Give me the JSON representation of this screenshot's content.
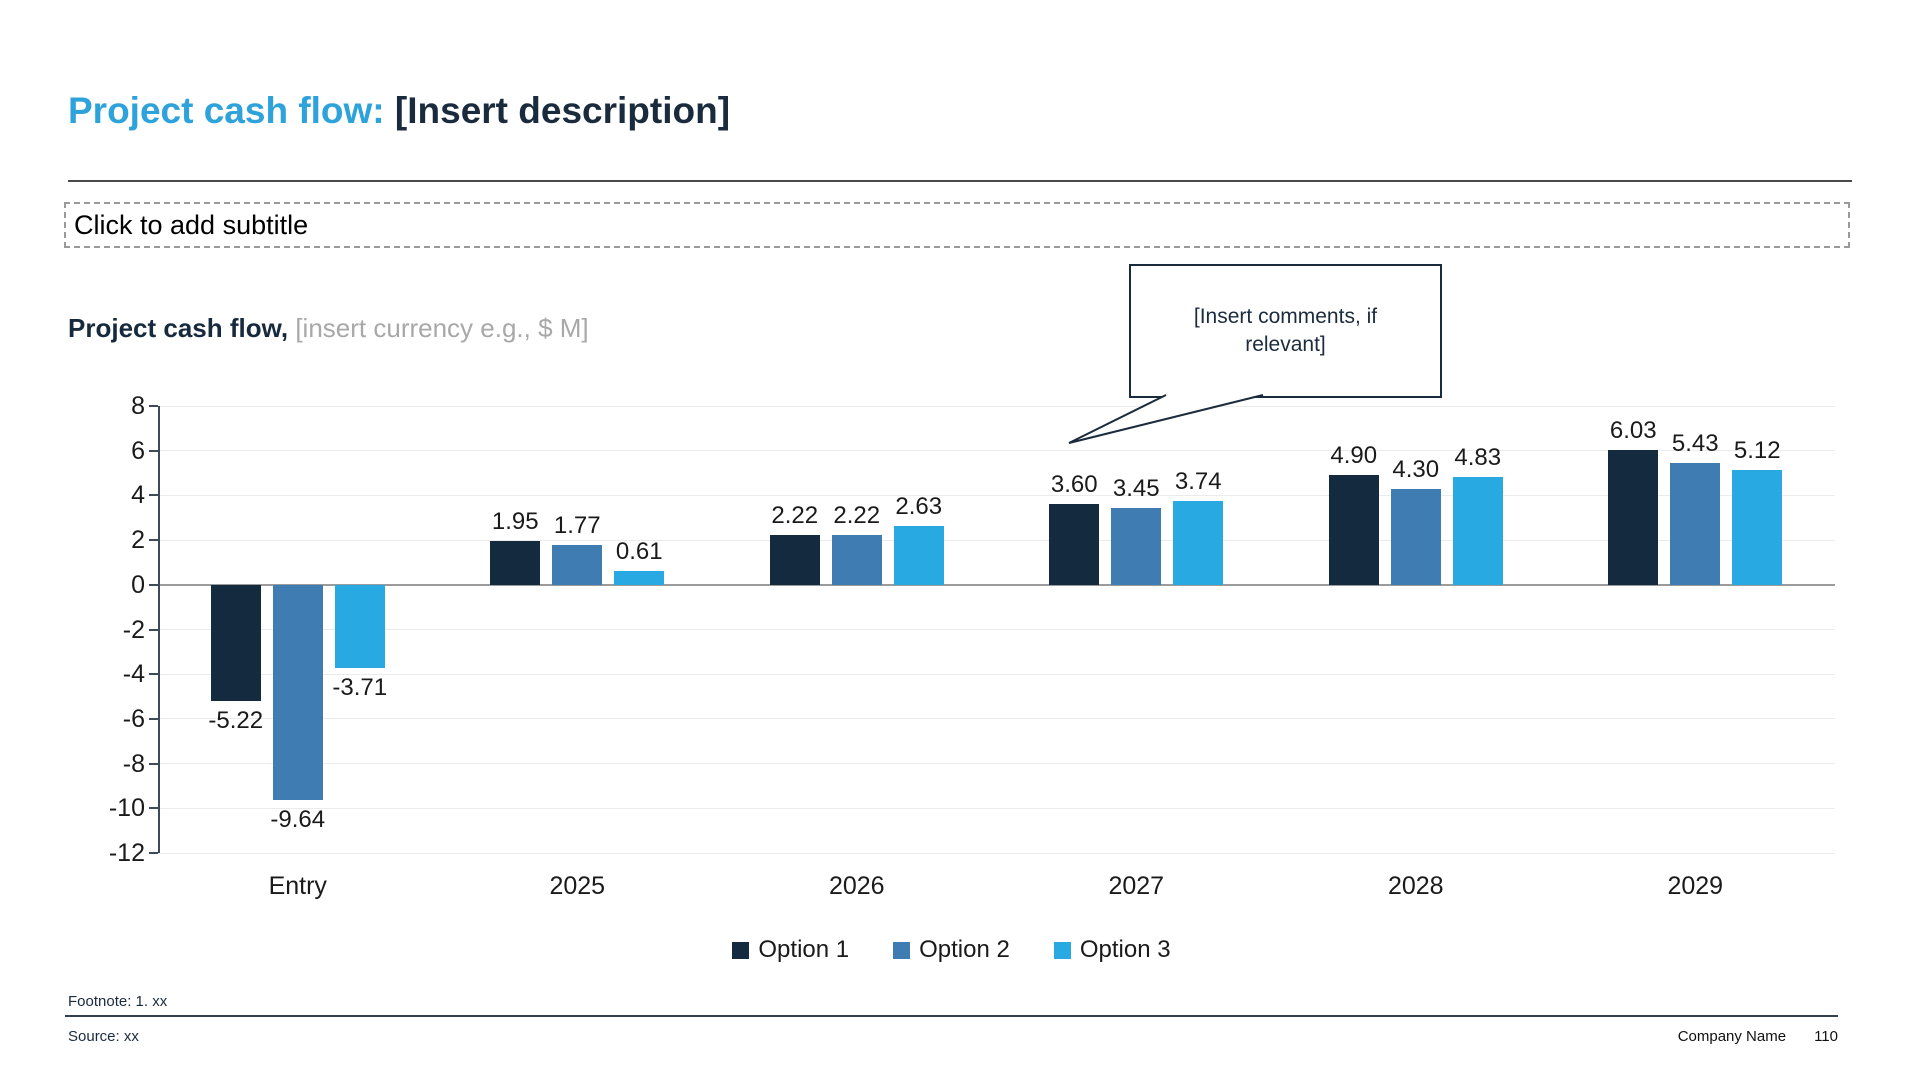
{
  "slide": {
    "title_highlight": "Project cash flow:",
    "title_rest": " [Insert description]",
    "subtitle_placeholder": "Click to add subtitle",
    "chart_heading_bold": "Project cash flow,",
    "chart_heading_note": " [insert currency e.g., $ M]",
    "comment_box_text": "[Insert comments, if relevant]",
    "footnote": "Footnote: 1. xx",
    "source": "Source: xx",
    "company": "Company Name",
    "page_number": "110"
  },
  "colors": {
    "title_accent": "#2EA2DB",
    "dark_navy_text": "#1B2B3E",
    "placeholder_gray": "#A8A8A8",
    "gridline": "#EBEBEB",
    "zero_line": "#9B9B9B",
    "axis": "#3C4A59"
  },
  "chart_data": {
    "type": "bar",
    "title": "Project cash flow, [insert currency e.g., $ M]",
    "categories": [
      "Entry",
      "2025",
      "2026",
      "2027",
      "2028",
      "2029"
    ],
    "series": [
      {
        "name": "Option 1",
        "color": "#132A3F",
        "values": [
          -5.22,
          1.95,
          2.22,
          3.6,
          4.9,
          6.03
        ]
      },
      {
        "name": "Option 2",
        "color": "#3E7CB1",
        "values": [
          -9.64,
          1.77,
          2.22,
          3.45,
          4.3,
          5.43
        ]
      },
      {
        "name": "Option 3",
        "color": "#29A9E1",
        "values": [
          -3.71,
          0.61,
          2.63,
          3.74,
          4.83,
          5.12
        ]
      }
    ],
    "ylim": [
      -12,
      8
    ],
    "ytick_step": 2,
    "yticks": [
      8,
      6,
      4,
      2,
      0,
      -2,
      -4,
      -6,
      -8,
      -10,
      -12
    ],
    "grid": true,
    "value_labels": true,
    "value_label_format": "0.00",
    "legend_position": "bottom",
    "annotation": "[Insert comments, if relevant]"
  }
}
